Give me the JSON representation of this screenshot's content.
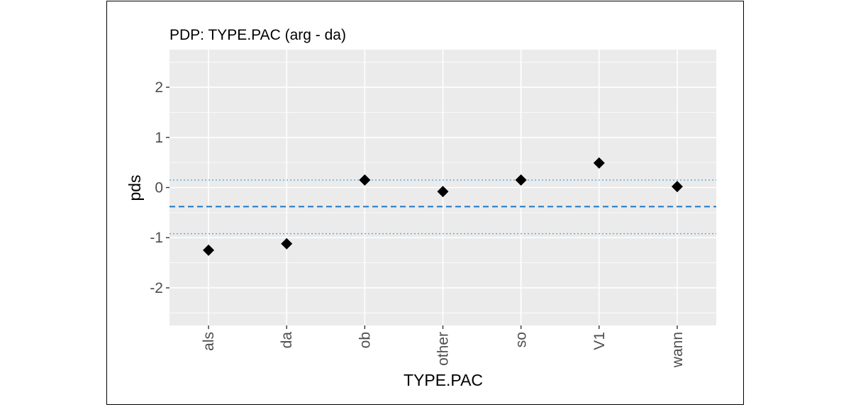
{
  "chart_data": {
    "type": "scatter",
    "title": "PDP: TYPE.PAC (arg - da)",
    "xlabel": "TYPE.PAC",
    "ylabel": "pds",
    "categories": [
      "als",
      "da",
      "ob",
      "other",
      "so",
      "V1",
      "wann"
    ],
    "series": [
      {
        "values": [
          -1.25,
          -1.12,
          0.15,
          -0.08,
          0.15,
          0.49,
          0.02
        ]
      }
    ],
    "ylim": [
      -2.75,
      2.75
    ],
    "yticks": [
      "-2",
      "-1",
      "0",
      "1",
      "2"
    ],
    "ytick_values": [
      -2,
      -1,
      0,
      1,
      2
    ],
    "reference_lines": [
      {
        "style": "dashed",
        "value": -0.38,
        "color": "#1f77c4"
      },
      {
        "style": "dotted",
        "value": 0.15,
        "color": "#5aa8d8"
      },
      {
        "style": "dotted",
        "value": -0.92,
        "color": "#5aa8d8"
      }
    ],
    "grid": true,
    "panel_color": "#ebebeb",
    "point_color": "#000000"
  }
}
